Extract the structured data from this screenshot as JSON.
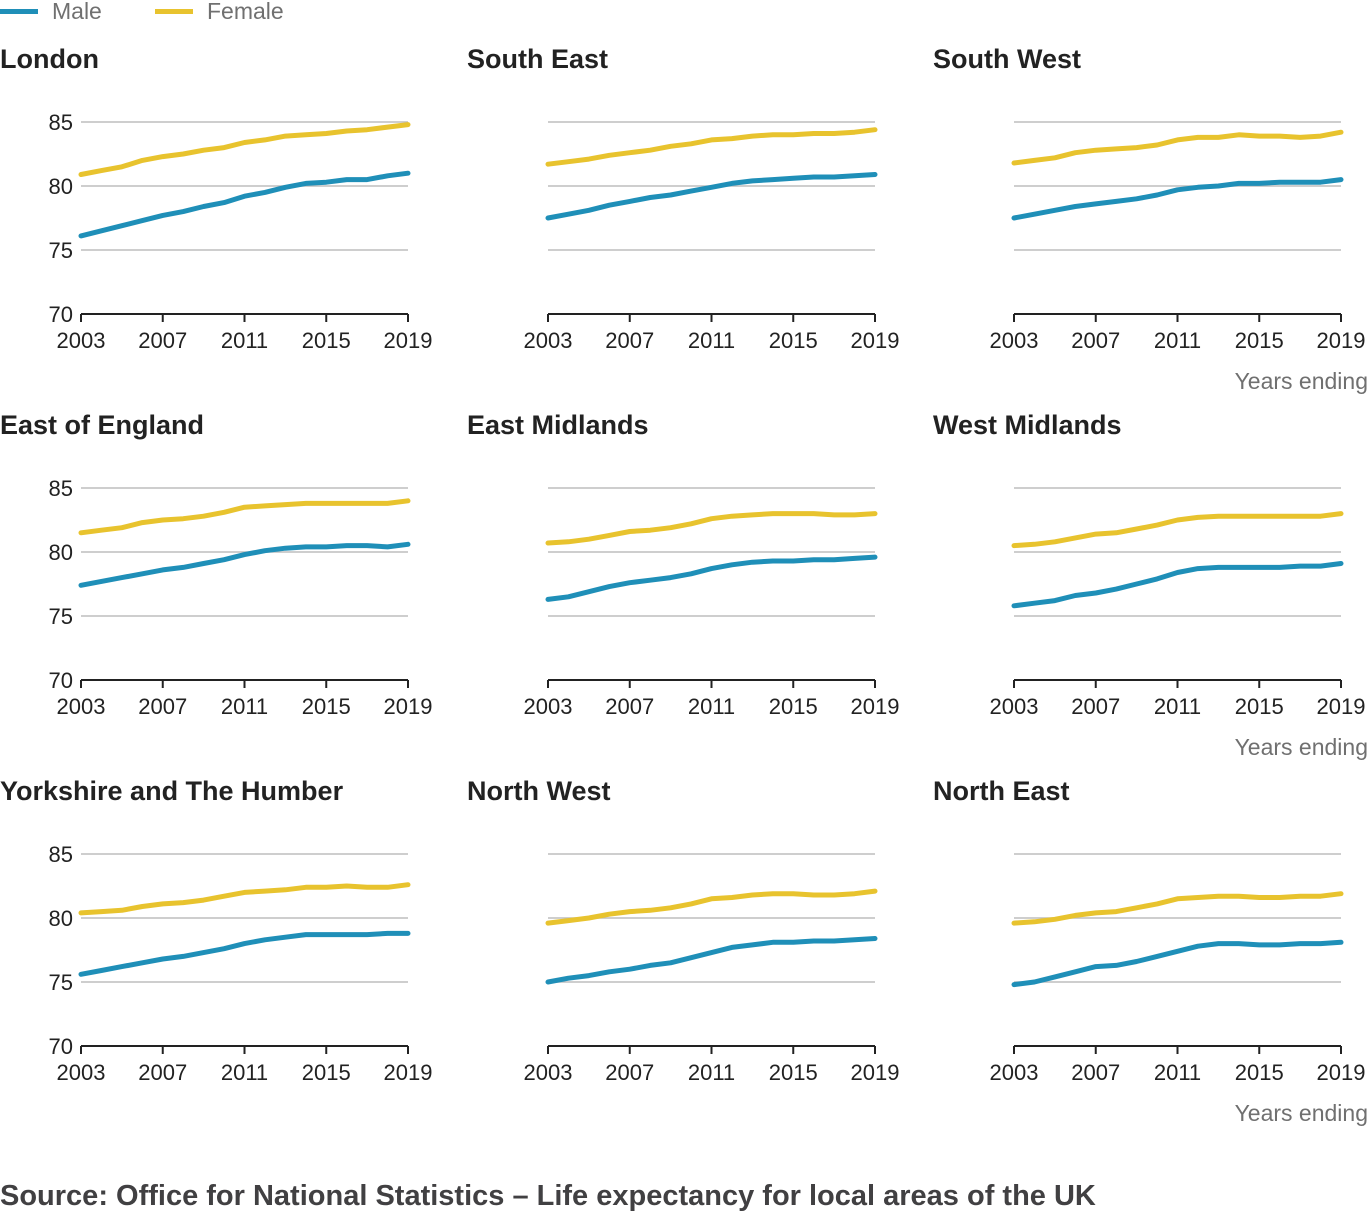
{
  "legend": [
    {
      "label": "Male",
      "color": "#206095"
    },
    {
      "label": "Female",
      "color": "#F2C02E"
    }
  ],
  "colors": {
    "male": "#1F8FB8",
    "female": "#E8C32E",
    "grid": "#BEBEBE",
    "axis": "#222222"
  },
  "source": "Source: Office for National Statistics – Life expectancy for local areas of the UK",
  "chart_data": {
    "type": "line",
    "layout": "small-multiples 3x3",
    "x": [
      2003,
      2004,
      2005,
      2006,
      2007,
      2008,
      2009,
      2010,
      2011,
      2012,
      2013,
      2014,
      2015,
      2016,
      2017,
      2018,
      2019
    ],
    "x_ticks": [
      "2003",
      "2007",
      "2011",
      "2015",
      "2019"
    ],
    "y_ticks": [
      "70",
      "75",
      "80",
      "85"
    ],
    "ylim": [
      70,
      85
    ],
    "xlabel": "Years ending",
    "ylabel": "",
    "grid": "horizontal",
    "legend_position": "top-left",
    "panels": [
      {
        "title": "London",
        "male": [
          76.1,
          76.5,
          76.9,
          77.3,
          77.7,
          78.0,
          78.4,
          78.7,
          79.2,
          79.5,
          79.9,
          80.2,
          80.3,
          80.5,
          80.5,
          80.8,
          81.0
        ],
        "female": [
          80.9,
          81.2,
          81.5,
          82.0,
          82.3,
          82.5,
          82.8,
          83.0,
          83.4,
          83.6,
          83.9,
          84.0,
          84.1,
          84.3,
          84.4,
          84.6,
          84.8
        ]
      },
      {
        "title": "South East",
        "male": [
          77.5,
          77.8,
          78.1,
          78.5,
          78.8,
          79.1,
          79.3,
          79.6,
          79.9,
          80.2,
          80.4,
          80.5,
          80.6,
          80.7,
          80.7,
          80.8,
          80.9
        ],
        "female": [
          81.7,
          81.9,
          82.1,
          82.4,
          82.6,
          82.8,
          83.1,
          83.3,
          83.6,
          83.7,
          83.9,
          84.0,
          84.0,
          84.1,
          84.1,
          84.2,
          84.4
        ]
      },
      {
        "title": "South West",
        "male": [
          77.5,
          77.8,
          78.1,
          78.4,
          78.6,
          78.8,
          79.0,
          79.3,
          79.7,
          79.9,
          80.0,
          80.2,
          80.2,
          80.3,
          80.3,
          80.3,
          80.5
        ],
        "female": [
          81.8,
          82.0,
          82.2,
          82.6,
          82.8,
          82.9,
          83.0,
          83.2,
          83.6,
          83.8,
          83.8,
          84.0,
          83.9,
          83.9,
          83.8,
          83.9,
          84.2
        ]
      },
      {
        "title": "East of England",
        "male": [
          77.4,
          77.7,
          78.0,
          78.3,
          78.6,
          78.8,
          79.1,
          79.4,
          79.8,
          80.1,
          80.3,
          80.4,
          80.4,
          80.5,
          80.5,
          80.4,
          80.6
        ],
        "female": [
          81.5,
          81.7,
          81.9,
          82.3,
          82.5,
          82.6,
          82.8,
          83.1,
          83.5,
          83.6,
          83.7,
          83.8,
          83.8,
          83.8,
          83.8,
          83.8,
          84.0
        ]
      },
      {
        "title": "East Midlands",
        "male": [
          76.3,
          76.5,
          76.9,
          77.3,
          77.6,
          77.8,
          78.0,
          78.3,
          78.7,
          79.0,
          79.2,
          79.3,
          79.3,
          79.4,
          79.4,
          79.5,
          79.6
        ],
        "female": [
          80.7,
          80.8,
          81.0,
          81.3,
          81.6,
          81.7,
          81.9,
          82.2,
          82.6,
          82.8,
          82.9,
          83.0,
          83.0,
          83.0,
          82.9,
          82.9,
          83.0
        ]
      },
      {
        "title": "West Midlands",
        "male": [
          75.8,
          76.0,
          76.2,
          76.6,
          76.8,
          77.1,
          77.5,
          77.9,
          78.4,
          78.7,
          78.8,
          78.8,
          78.8,
          78.8,
          78.9,
          78.9,
          79.1
        ],
        "female": [
          80.5,
          80.6,
          80.8,
          81.1,
          81.4,
          81.5,
          81.8,
          82.1,
          82.5,
          82.7,
          82.8,
          82.8,
          82.8,
          82.8,
          82.8,
          82.8,
          83.0
        ]
      },
      {
        "title": "Yorkshire and The Humber",
        "male": [
          75.6,
          75.9,
          76.2,
          76.5,
          76.8,
          77.0,
          77.3,
          77.6,
          78.0,
          78.3,
          78.5,
          78.7,
          78.7,
          78.7,
          78.7,
          78.8,
          78.8
        ],
        "female": [
          80.4,
          80.5,
          80.6,
          80.9,
          81.1,
          81.2,
          81.4,
          81.7,
          82.0,
          82.1,
          82.2,
          82.4,
          82.4,
          82.5,
          82.4,
          82.4,
          82.6
        ]
      },
      {
        "title": "North West",
        "male": [
          75.0,
          75.3,
          75.5,
          75.8,
          76.0,
          76.3,
          76.5,
          76.9,
          77.3,
          77.7,
          77.9,
          78.1,
          78.1,
          78.2,
          78.2,
          78.3,
          78.4
        ],
        "female": [
          79.6,
          79.8,
          80.0,
          80.3,
          80.5,
          80.6,
          80.8,
          81.1,
          81.5,
          81.6,
          81.8,
          81.9,
          81.9,
          81.8,
          81.8,
          81.9,
          82.1
        ]
      },
      {
        "title": "North East",
        "male": [
          74.8,
          75.0,
          75.4,
          75.8,
          76.2,
          76.3,
          76.6,
          77.0,
          77.4,
          77.8,
          78.0,
          78.0,
          77.9,
          77.9,
          78.0,
          78.0,
          78.1
        ],
        "female": [
          79.6,
          79.7,
          79.9,
          80.2,
          80.4,
          80.5,
          80.8,
          81.1,
          81.5,
          81.6,
          81.7,
          81.7,
          81.6,
          81.6,
          81.7,
          81.7,
          81.9
        ]
      }
    ]
  }
}
